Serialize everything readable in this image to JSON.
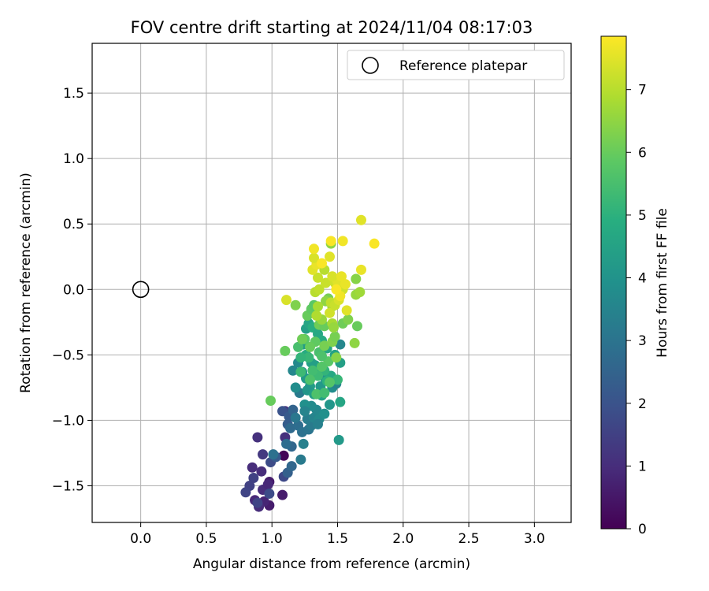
{
  "chart_data": {
    "type": "scatter",
    "title": "FOV centre drift starting at 2024/11/04 08:17:03",
    "xlabel": "Angular distance from reference (arcmin)",
    "ylabel": "Rotation from reference (arcmin)",
    "xlim": [
      -0.37,
      3.28
    ],
    "ylim": [
      -1.78,
      1.88
    ],
    "xticks": [
      "0.0",
      "0.5",
      "1.0",
      "1.5",
      "2.0",
      "2.5",
      "3.0"
    ],
    "yticks": [
      "−1.5",
      "−1.0",
      "−0.5",
      "0.0",
      "0.5",
      "1.0",
      "1.5"
    ],
    "xtick_values": [
      0,
      0.5,
      1,
      1.5,
      2,
      2.5,
      3
    ],
    "ytick_values": [
      -1.5,
      -1,
      -0.5,
      0,
      0.5,
      1,
      1.5
    ],
    "grid": true,
    "legend_position": "top-right",
    "reference": {
      "name": "Reference platepar",
      "x": 0.0,
      "y": 0.0
    },
    "colorbar": {
      "label": "Hours from first FF file",
      "min": 0,
      "max": 7.85,
      "colormap": "viridis",
      "tick_values": [
        0,
        1,
        2,
        3,
        4,
        5,
        6,
        7
      ],
      "ticks": [
        "0",
        "1",
        "2",
        "3",
        "4",
        "5",
        "6",
        "7"
      ]
    },
    "points": [
      {
        "x": 1.09,
        "y": -1.27,
        "t": 0.1
      },
      {
        "x": 0.98,
        "y": -1.65,
        "t": 0.6
      },
      {
        "x": 0.98,
        "y": -1.47,
        "t": 0.6
      },
      {
        "x": 1.08,
        "y": -1.57,
        "t": 0.6
      },
      {
        "x": 0.94,
        "y": -1.62,
        "t": 0.8
      },
      {
        "x": 0.9,
        "y": -1.66,
        "t": 1.0
      },
      {
        "x": 0.93,
        "y": -1.53,
        "t": 1.0
      },
      {
        "x": 0.97,
        "y": -1.49,
        "t": 0.9
      },
      {
        "x": 0.87,
        "y": -1.61,
        "t": 0.9
      },
      {
        "x": 0.85,
        "y": -1.36,
        "t": 1.0
      },
      {
        "x": 0.92,
        "y": -1.39,
        "t": 1.0
      },
      {
        "x": 0.89,
        "y": -1.13,
        "t": 1.1
      },
      {
        "x": 1.1,
        "y": -1.13,
        "t": 1.1
      },
      {
        "x": 0.93,
        "y": -1.26,
        "t": 1.3
      },
      {
        "x": 0.86,
        "y": -1.44,
        "t": 1.5
      },
      {
        "x": 0.83,
        "y": -1.5,
        "t": 1.5
      },
      {
        "x": 0.8,
        "y": -1.55,
        "t": 1.6
      },
      {
        "x": 0.89,
        "y": -1.63,
        "t": 1.6
      },
      {
        "x": 0.98,
        "y": -1.56,
        "t": 1.8
      },
      {
        "x": 1.09,
        "y": -1.43,
        "t": 1.7
      },
      {
        "x": 0.99,
        "y": -1.32,
        "t": 1.8
      },
      {
        "x": 1.03,
        "y": -1.28,
        "t": 2.2
      },
      {
        "x": 1.1,
        "y": -0.93,
        "t": 1.2
      },
      {
        "x": 1.08,
        "y": -0.93,
        "t": 2.0
      },
      {
        "x": 1.13,
        "y": -0.97,
        "t": 2.2
      },
      {
        "x": 1.12,
        "y": -1.4,
        "t": 2.4
      },
      {
        "x": 1.15,
        "y": -1.35,
        "t": 2.6
      },
      {
        "x": 1.15,
        "y": -1.2,
        "t": 2.6
      },
      {
        "x": 1.11,
        "y": -1.18,
        "t": 2.8
      },
      {
        "x": 1.01,
        "y": -1.26,
        "t": 2.9
      },
      {
        "x": 1.12,
        "y": -1.03,
        "t": 2.3
      },
      {
        "x": 1.16,
        "y": -0.92,
        "t": 2.5
      },
      {
        "x": 1.14,
        "y": -1.06,
        "t": 2.7
      },
      {
        "x": 1.2,
        "y": -1.04,
        "t": 2.8
      },
      {
        "x": 1.18,
        "y": -0.98,
        "t": 3.1
      },
      {
        "x": 1.23,
        "y": -1.09,
        "t": 2.9
      },
      {
        "x": 1.22,
        "y": -1.3,
        "t": 3.2
      },
      {
        "x": 1.24,
        "y": -1.18,
        "t": 3.4
      },
      {
        "x": 1.28,
        "y": -1.07,
        "t": 3.0
      },
      {
        "x": 1.3,
        "y": -1.04,
        "t": 3.2
      },
      {
        "x": 1.27,
        "y": -0.99,
        "t": 3.3
      },
      {
        "x": 1.32,
        "y": -0.98,
        "t": 3.5
      },
      {
        "x": 1.34,
        "y": -0.92,
        "t": 3.6
      },
      {
        "x": 1.36,
        "y": -0.99,
        "t": 3.7
      },
      {
        "x": 1.35,
        "y": -1.03,
        "t": 3.4
      },
      {
        "x": 1.3,
        "y": -0.89,
        "t": 3.7
      },
      {
        "x": 1.25,
        "y": -0.88,
        "t": 3.9
      },
      {
        "x": 1.25,
        "y": -0.93,
        "t": 3.5
      },
      {
        "x": 1.21,
        "y": -0.79,
        "t": 3.2
      },
      {
        "x": 1.18,
        "y": -0.75,
        "t": 3.8
      },
      {
        "x": 1.16,
        "y": -0.62,
        "t": 3.6
      },
      {
        "x": 1.2,
        "y": -0.56,
        "t": 3.7
      },
      {
        "x": 1.23,
        "y": -0.63,
        "t": 4.0
      },
      {
        "x": 1.26,
        "y": -0.68,
        "t": 4.2
      },
      {
        "x": 1.29,
        "y": -0.74,
        "t": 4.3
      },
      {
        "x": 1.27,
        "y": -0.77,
        "t": 4.1
      },
      {
        "x": 1.32,
        "y": -0.8,
        "t": 4.4
      },
      {
        "x": 1.38,
        "y": -0.81,
        "t": 4.5
      },
      {
        "x": 1.37,
        "y": -0.74,
        "t": 4.2
      },
      {
        "x": 1.41,
        "y": -0.69,
        "t": 4.0
      },
      {
        "x": 1.46,
        "y": -0.75,
        "t": 3.8
      },
      {
        "x": 1.49,
        "y": -0.72,
        "t": 3.5
      },
      {
        "x": 1.44,
        "y": -0.88,
        "t": 4.1
      },
      {
        "x": 1.4,
        "y": -0.95,
        "t": 3.9
      },
      {
        "x": 1.52,
        "y": -0.42,
        "t": 3.6
      },
      {
        "x": 1.51,
        "y": -1.15,
        "t": 4.2
      },
      {
        "x": 1.52,
        "y": -0.86,
        "t": 4.6
      },
      {
        "x": 1.45,
        "y": -0.66,
        "t": 4.7
      },
      {
        "x": 1.35,
        "y": -0.63,
        "t": 4.6
      },
      {
        "x": 1.33,
        "y": -0.58,
        "t": 4.5
      },
      {
        "x": 1.3,
        "y": -0.56,
        "t": 4.4
      },
      {
        "x": 1.26,
        "y": -0.5,
        "t": 4.8
      },
      {
        "x": 1.24,
        "y": -0.42,
        "t": 4.3
      },
      {
        "x": 1.26,
        "y": -0.3,
        "t": 4.4
      },
      {
        "x": 1.28,
        "y": -0.26,
        "t": 4.6
      },
      {
        "x": 1.31,
        "y": -0.29,
        "t": 4.9
      },
      {
        "x": 1.35,
        "y": -0.34,
        "t": 4.7
      },
      {
        "x": 1.38,
        "y": -0.39,
        "t": 4.8
      },
      {
        "x": 1.42,
        "y": -0.45,
        "t": 4.6
      },
      {
        "x": 1.48,
        "y": -0.5,
        "t": 4.5
      },
      {
        "x": 1.52,
        "y": -0.56,
        "t": 4.4
      },
      {
        "x": 1.5,
        "y": -0.69,
        "t": 5.2
      },
      {
        "x": 1.42,
        "y": -0.7,
        "t": 5.0
      },
      {
        "x": 1.4,
        "y": -0.62,
        "t": 5.1
      },
      {
        "x": 1.35,
        "y": -0.66,
        "t": 5.3
      },
      {
        "x": 1.31,
        "y": -0.62,
        "t": 5.4
      },
      {
        "x": 1.28,
        "y": -0.52,
        "t": 5.2
      },
      {
        "x": 1.22,
        "y": -0.52,
        "t": 5.1
      },
      {
        "x": 1.2,
        "y": -0.44,
        "t": 5.5
      },
      {
        "x": 1.22,
        "y": -0.63,
        "t": 5.3
      },
      {
        "x": 1.29,
        "y": -0.69,
        "t": 5.6
      },
      {
        "x": 1.34,
        "y": -0.8,
        "t": 5.6
      },
      {
        "x": 1.4,
        "y": -0.79,
        "t": 5.4
      },
      {
        "x": 1.44,
        "y": -0.71,
        "t": 5.7
      },
      {
        "x": 1.43,
        "y": -0.55,
        "t": 5.8
      },
      {
        "x": 1.38,
        "y": -0.59,
        "t": 5.7
      },
      {
        "x": 1.36,
        "y": -0.48,
        "t": 5.5
      },
      {
        "x": 1.38,
        "y": -0.51,
        "t": 5.6
      },
      {
        "x": 1.33,
        "y": -0.4,
        "t": 5.9
      },
      {
        "x": 1.29,
        "y": -0.44,
        "t": 6.0
      },
      {
        "x": 1.25,
        "y": -0.38,
        "t": 5.8
      },
      {
        "x": 1.23,
        "y": -0.38,
        "t": 6.1
      },
      {
        "x": 1.27,
        "y": -0.2,
        "t": 6.0
      },
      {
        "x": 1.3,
        "y": -0.15,
        "t": 5.9
      },
      {
        "x": 1.32,
        "y": -0.12,
        "t": 5.8
      },
      {
        "x": 1.36,
        "y": -0.27,
        "t": 6.1
      },
      {
        "x": 1.4,
        "y": -0.28,
        "t": 6.0
      },
      {
        "x": 1.4,
        "y": -0.43,
        "t": 6.2
      },
      {
        "x": 1.46,
        "y": -0.4,
        "t": 6.3
      },
      {
        "x": 1.48,
        "y": -0.36,
        "t": 6.2
      },
      {
        "x": 1.49,
        "y": -0.52,
        "t": 6.4
      },
      {
        "x": 1.54,
        "y": -0.26,
        "t": 6.1
      },
      {
        "x": 1.58,
        "y": -0.23,
        "t": 6.3
      },
      {
        "x": 1.63,
        "y": -0.41,
        "t": 6.5
      },
      {
        "x": 1.65,
        "y": -0.28,
        "t": 6.0
      },
      {
        "x": 1.64,
        "y": -0.04,
        "t": 6.6
      },
      {
        "x": 1.67,
        "y": -0.02,
        "t": 6.7
      },
      {
        "x": 1.64,
        "y": 0.08,
        "t": 6.4
      },
      {
        "x": 1.43,
        "y": -0.07,
        "t": 6.2
      },
      {
        "x": 1.41,
        "y": -0.09,
        "t": 6.5
      },
      {
        "x": 1.38,
        "y": -0.23,
        "t": 6.6
      },
      {
        "x": 1.46,
        "y": -0.13,
        "t": 6.7
      },
      {
        "x": 1.46,
        "y": -0.26,
        "t": 6.8
      },
      {
        "x": 1.47,
        "y": -0.29,
        "t": 6.6
      },
      {
        "x": 1.34,
        "y": -0.2,
        "t": 6.9
      },
      {
        "x": 1.18,
        "y": -0.12,
        "t": 6.3
      },
      {
        "x": 1.1,
        "y": -0.47,
        "t": 6.0
      },
      {
        "x": 0.99,
        "y": -0.85,
        "t": 6.0
      },
      {
        "x": 1.35,
        "y": -0.13,
        "t": 6.8
      },
      {
        "x": 1.33,
        "y": -0.02,
        "t": 7.0
      },
      {
        "x": 1.36,
        "y": 0.0,
        "t": 7.1
      },
      {
        "x": 1.41,
        "y": 0.05,
        "t": 7.2
      },
      {
        "x": 1.45,
        "y": -0.1,
        "t": 7.1
      },
      {
        "x": 1.44,
        "y": -0.18,
        "t": 7.3
      },
      {
        "x": 1.48,
        "y": -0.12,
        "t": 7.2
      },
      {
        "x": 1.51,
        "y": -0.08,
        "t": 7.4
      },
      {
        "x": 1.54,
        "y": 0.0,
        "t": 7.3
      },
      {
        "x": 1.57,
        "y": -0.16,
        "t": 7.5
      },
      {
        "x": 1.48,
        "y": 0.05,
        "t": 7.3
      },
      {
        "x": 1.5,
        "y": 0.06,
        "t": 7.5
      },
      {
        "x": 1.46,
        "y": 0.1,
        "t": 7.4
      },
      {
        "x": 1.53,
        "y": 0.1,
        "t": 7.6
      },
      {
        "x": 1.56,
        "y": 0.04,
        "t": 7.6
      },
      {
        "x": 1.52,
        "y": -0.05,
        "t": 7.7
      },
      {
        "x": 1.49,
        "y": 0.0,
        "t": 7.8
      },
      {
        "x": 1.4,
        "y": 0.15,
        "t": 7.0
      },
      {
        "x": 1.35,
        "y": 0.09,
        "t": 7.2
      },
      {
        "x": 1.31,
        "y": 0.15,
        "t": 7.5
      },
      {
        "x": 1.34,
        "y": 0.19,
        "t": 7.6
      },
      {
        "x": 1.32,
        "y": 0.24,
        "t": 7.4
      },
      {
        "x": 1.38,
        "y": 0.2,
        "t": 7.8
      },
      {
        "x": 1.32,
        "y": 0.31,
        "t": 7.7
      },
      {
        "x": 1.44,
        "y": 0.25,
        "t": 7.5
      },
      {
        "x": 1.45,
        "y": 0.35,
        "t": 6.5
      },
      {
        "x": 1.45,
        "y": 0.37,
        "t": 7.8
      },
      {
        "x": 1.54,
        "y": 0.37,
        "t": 7.7
      },
      {
        "x": 1.68,
        "y": 0.53,
        "t": 7.5
      },
      {
        "x": 1.68,
        "y": 0.15,
        "t": 7.6
      },
      {
        "x": 1.78,
        "y": 0.35,
        "t": 7.8
      },
      {
        "x": 1.11,
        "y": -0.08,
        "t": 7.4
      }
    ]
  }
}
